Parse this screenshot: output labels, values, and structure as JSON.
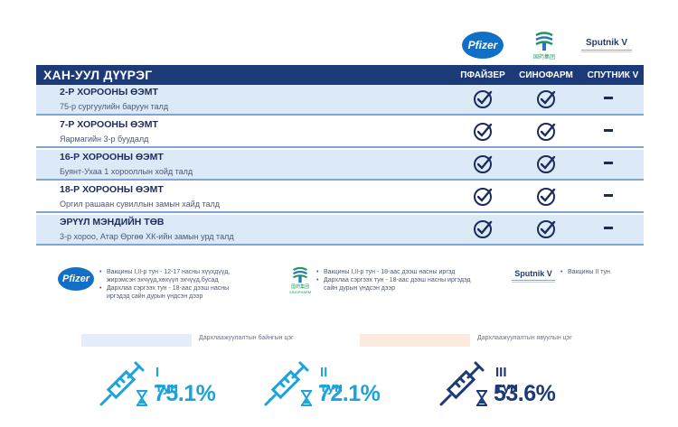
{
  "brands": {
    "pfizer_logo_text": "Pfizer",
    "sinopharm_logo_text": "国药集团",
    "sputnik_logo_text": "Sputnik V"
  },
  "table": {
    "district_title": "ХАН-УУЛ ДҮҮРЭГ",
    "columns": [
      "ПФАЙЗЕР",
      "СИНОФАРМ",
      "СПУТНИК V"
    ],
    "rows": [
      {
        "title": "2-Р ХОРООНЫ ӨЭМТ",
        "address": "75-р сургуулийн баруун талд",
        "pfizer": true,
        "sinopharm": true,
        "sputnik": false
      },
      {
        "title": "7-Р ХОРООНЫ ӨЭМТ",
        "address": "Яармагийн 3-р буудалд",
        "pfizer": true,
        "sinopharm": true,
        "sputnik": false
      },
      {
        "title": "16-Р ХОРООНЫ ӨЭМТ",
        "address": "Буянт-Ухаа 1 хорооллын хойд талд",
        "pfizer": true,
        "sinopharm": true,
        "sputnik": false
      },
      {
        "title": "18-Р ХОРООНЫ ӨЭМТ",
        "address": "Оргил рашаан сувиллын замын хайд талд",
        "pfizer": true,
        "sinopharm": true,
        "sputnik": false
      },
      {
        "title": "ЭРҮҮЛ МЭНДИЙН ТӨВ",
        "address": "3-р хороо, Атар Өргөө ХК-ийн замын урд талд",
        "pfizer": true,
        "sinopharm": true,
        "sputnik": false
      }
    ]
  },
  "notes": {
    "pfizer": [
      "Вакцины I,II-р тун - 12-17 насны хүүхдүүд, жирэмсэн эхчүүд,хөхүүл эхчүүд,бусад",
      "Дархлаа сэргээх тун - 18-аас дээш насны иргэдэд сайн дурын үндсэн дээр"
    ],
    "sinopharm": [
      "Вакцины I,II-р тун - 18-аас дээш насны иргэд",
      "Дархлаа сэргээх тун - 18-аас дээш насны иргэдэд сайн дурын үндсэн дээр"
    ],
    "sputnik": [
      "Вакцины II тун"
    ],
    "sinopharm_logo_sub": "SINOPHARM",
    "sputnik_logo_text": "Sputnik V"
  },
  "legend": {
    "immunity": "Дархлаажуулалтын байнгын цэг",
    "mobile": "Дархлаажуулалтын явуулын цэг"
  },
  "stats": [
    {
      "dose": "I тун",
      "percent": "75.1%"
    },
    {
      "dose": "II тун",
      "percent": "72.1%"
    },
    {
      "dose": "III тун",
      "percent": "53.6%"
    }
  ],
  "colors": {
    "header": "#1d3a78",
    "row_tint": "#dceaf7",
    "accent_light": "#1aa3dc",
    "accent_dark": "#1d3a78"
  }
}
